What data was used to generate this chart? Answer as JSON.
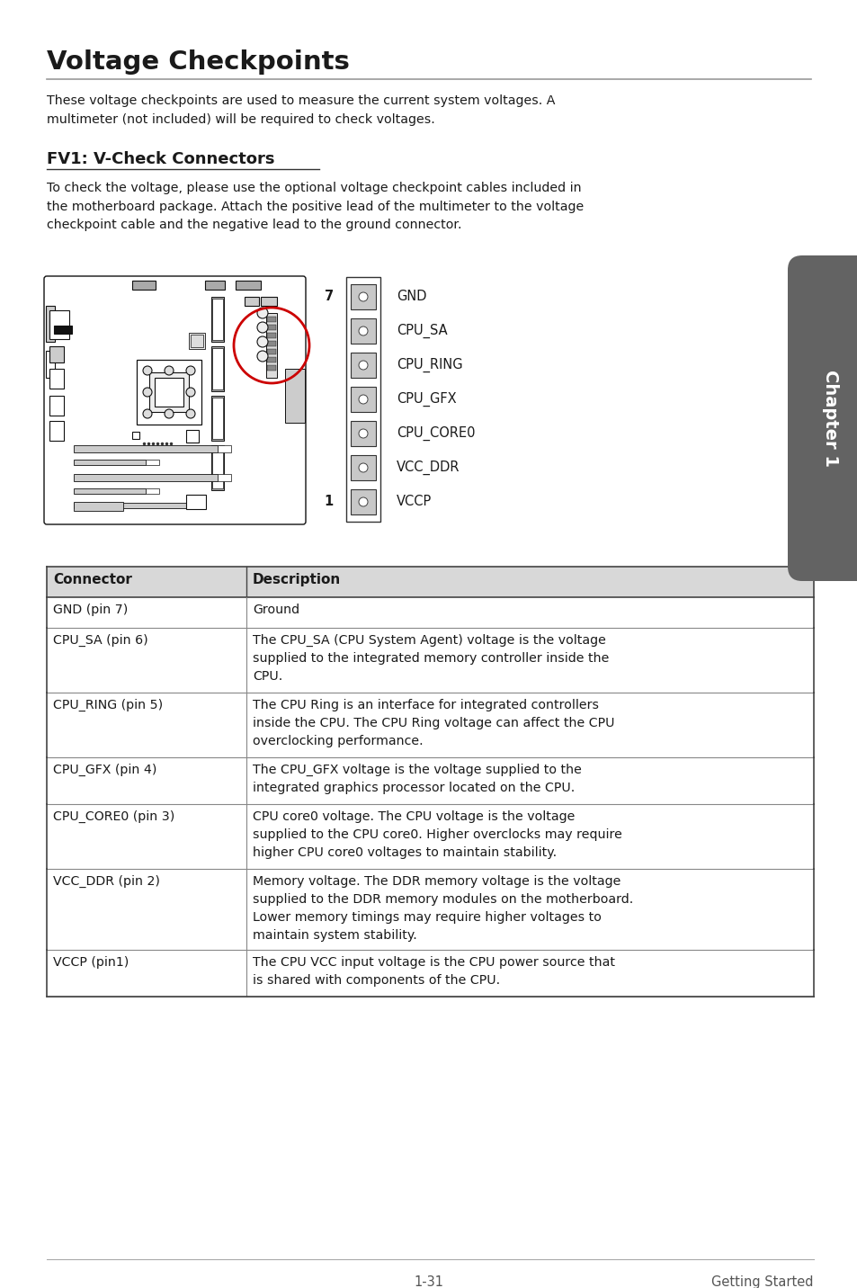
{
  "page_bg": "#ffffff",
  "title": "Voltage Checkpoints",
  "subtitle": "FV1: V-Check Connectors",
  "intro_text": "These voltage checkpoints are used to measure the current system voltages. A\nmultimeter (not included) will be required to check voltages.",
  "section_text": "To check the voltage, please use the optional voltage checkpoint cables included in\nthe motherboard package. Attach the positive lead of the multimeter to the voltage\ncheckpoint cable and the negative lead to the ground connector.",
  "pins": [
    "GND",
    "CPU_SA",
    "CPU_RING",
    "CPU_GFX",
    "CPU_CORE0",
    "VCC_DDR",
    "VCCP"
  ],
  "table_headers": [
    "Connector",
    "Description"
  ],
  "table_col1": [
    "GND (pin 7)",
    "CPU_SA (pin 6)",
    "CPU_RING (pin 5)",
    "CPU_GFX (pin 4)",
    "CPU_CORE0 (pin 3)",
    "VCC_DDR (pin 2)",
    "VCCP (pin1)"
  ],
  "table_col2": [
    "Ground",
    "The CPU_SA (CPU System Agent) voltage is the voltage\nsupplied to the integrated memory controller inside the\nCPU.",
    "The CPU Ring is an interface for integrated controllers\ninside the CPU. The CPU Ring voltage can affect the CPU\noverclocking performance.",
    "The CPU_GFX voltage is the voltage supplied to the\nintegrated graphics processor located on the CPU.",
    "CPU core0 voltage. The CPU voltage is the voltage\nsupplied to the CPU core0. Higher overclocks may require\nhigher CPU core0 voltages to maintain stability.",
    "Memory voltage. The DDR memory voltage is the voltage\nsupplied to the DDR memory modules on the motherboard.\nLower memory timings may require higher voltages to\nmaintain system stability.",
    "The CPU VCC input voltage is the CPU power source that\nis shared with components of the CPU."
  ],
  "footer_left": "1-31",
  "footer_right": "Getting Started",
  "chapter_label": "Chapter 1",
  "chapter_tab_color": "#636363"
}
